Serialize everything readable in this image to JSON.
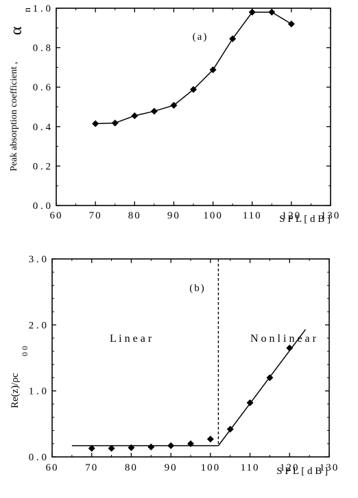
{
  "chart_data": [
    {
      "type": "line",
      "panel_label": "(a)",
      "title": "",
      "xlabel": "S P L [ d B ]",
      "ylabel": "Peak absorption coefficient ,",
      "ylabel_symbol": "α",
      "ylabel_subscript": "n",
      "xlim": [
        60,
        130
      ],
      "ylim": [
        0.0,
        1.0
      ],
      "xticks": [
        60,
        70,
        80,
        90,
        100,
        110,
        120,
        130
      ],
      "yticks": [
        0.0,
        0.2,
        0.4,
        0.6,
        0.8,
        1.0
      ],
      "ytick_labels": [
        "0 . 0",
        "0 . 2",
        "0 . 4",
        "0 . 6",
        "0 . 8",
        "1 . 0"
      ],
      "grid": false,
      "series": [
        {
          "x": [
            70,
            75,
            80,
            85,
            90,
            95,
            100,
            105,
            110,
            115,
            120
          ],
          "y": [
            0.415,
            0.418,
            0.455,
            0.478,
            0.508,
            0.588,
            0.688,
            0.845,
            0.98,
            0.98,
            0.92
          ],
          "marker": "diamond",
          "line": true
        }
      ]
    },
    {
      "type": "scatter",
      "panel_label": "(b)",
      "title": "",
      "xlabel": "S P L [ d B ]",
      "ylabel": "Re(z)/ρc",
      "ylabel_subscript": "0 0",
      "xlim": [
        60,
        130
      ],
      "ylim": [
        0.0,
        3.0
      ],
      "xticks": [
        60,
        70,
        80,
        90,
        100,
        110,
        120,
        130
      ],
      "yticks": [
        0.0,
        1.0,
        2.0,
        3.0
      ],
      "ytick_labels": [
        "0 . 0",
        "1 . 0",
        "2 . 0",
        "3 . 0"
      ],
      "grid": false,
      "annotations": [
        "L i n e a r",
        "N o n l i n e a r"
      ],
      "divider_x": 102,
      "series": [
        {
          "x": [
            70,
            75,
            80,
            85,
            90,
            95,
            100,
            105,
            110,
            115,
            120
          ],
          "y": [
            0.13,
            0.13,
            0.14,
            0.15,
            0.17,
            0.2,
            0.27,
            0.42,
            0.82,
            1.2,
            1.65
          ],
          "marker": "diamond",
          "line": false
        }
      ],
      "fit_lines": [
        {
          "x": [
            65,
            102
          ],
          "y": [
            0.17,
            0.17
          ]
        },
        {
          "x": [
            102,
            124
          ],
          "y": [
            0.17,
            1.93
          ]
        }
      ]
    }
  ]
}
